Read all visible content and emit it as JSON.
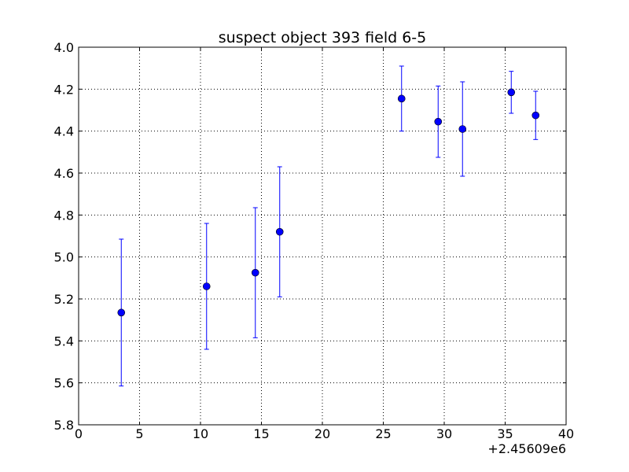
{
  "chart_data": {
    "type": "scatter",
    "title": "suspect object 393 field 6-5",
    "xlabel": "",
    "ylabel": "",
    "x_offset_label": "+2.45609e6",
    "xlim": [
      0,
      40
    ],
    "ylim": [
      5.8,
      4.0
    ],
    "y_inverted": true,
    "grid": true,
    "marker_color": "#0000ff",
    "x_ticks": [
      0,
      5,
      10,
      15,
      20,
      25,
      30,
      35,
      40
    ],
    "x_tick_labels": [
      "0",
      "5",
      "10",
      "15",
      "20",
      "25",
      "30",
      "35",
      "40"
    ],
    "y_ticks": [
      4.0,
      4.2,
      4.4,
      4.6,
      4.8,
      5.0,
      5.2,
      5.4,
      5.6,
      5.8
    ],
    "y_tick_labels": [
      "4.0",
      "4.2",
      "4.4",
      "4.6",
      "4.8",
      "5.0",
      "5.2",
      "5.4",
      "5.6",
      "5.8"
    ],
    "series": [
      {
        "points": [
          {
            "x": 3.5,
            "y": 5.265,
            "yerr": 0.35
          },
          {
            "x": 10.5,
            "y": 5.14,
            "yerr": 0.3
          },
          {
            "x": 14.5,
            "y": 5.075,
            "yerr": 0.31
          },
          {
            "x": 16.5,
            "y": 4.88,
            "yerr": 0.31
          },
          {
            "x": 26.5,
            "y": 4.245,
            "yerr": 0.155
          },
          {
            "x": 29.5,
            "y": 4.355,
            "yerr": 0.17
          },
          {
            "x": 31.5,
            "y": 4.39,
            "yerr": 0.225
          },
          {
            "x": 35.5,
            "y": 4.215,
            "yerr": 0.1
          },
          {
            "x": 37.5,
            "y": 4.325,
            "yerr": 0.115
          }
        ]
      }
    ]
  }
}
